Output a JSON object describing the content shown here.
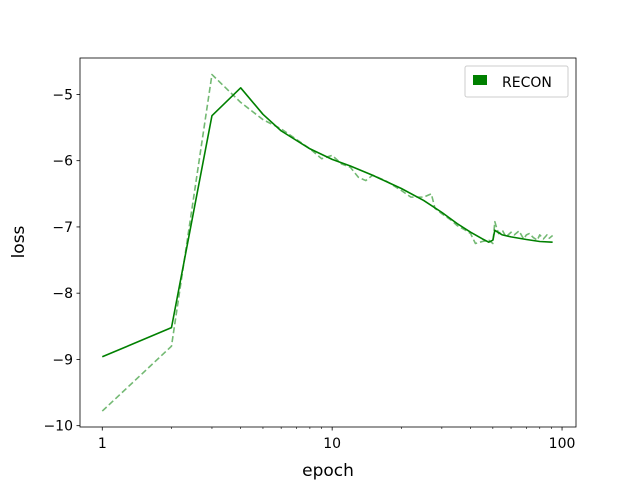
{
  "chart_data": {
    "type": "line",
    "title": "",
    "xlabel": "epoch",
    "ylabel": "loss",
    "xscale": "log",
    "xlim": [
      0.8,
      115
    ],
    "ylim": [
      -10.02,
      -4.45
    ],
    "grid": false,
    "legend_placement": "top-right",
    "x_ticks": [
      {
        "value": 1,
        "label": "1"
      },
      {
        "value": 10,
        "label": "10"
      },
      {
        "value": 100,
        "label": "100"
      }
    ],
    "y_ticks": [
      {
        "value": -5,
        "label": "−5"
      },
      {
        "value": -6,
        "label": "−6"
      },
      {
        "value": -7,
        "label": "−7"
      },
      {
        "value": -8,
        "label": "−8"
      },
      {
        "value": -9,
        "label": "−9"
      },
      {
        "value": -10,
        "label": "−10"
      }
    ],
    "series": [
      {
        "name": "RECON",
        "color": "#008000",
        "style": "solid",
        "opacity": 1,
        "in_legend": true,
        "x": [
          1,
          2,
          3,
          4,
          5,
          6,
          8,
          10,
          12,
          15,
          20,
          25,
          30,
          35,
          40,
          45,
          48,
          50,
          51,
          52,
          55,
          60,
          70,
          80,
          91
        ],
        "y": [
          -8.96,
          -8.52,
          -5.32,
          -4.9,
          -5.3,
          -5.55,
          -5.82,
          -5.98,
          -6.08,
          -6.22,
          -6.42,
          -6.6,
          -6.78,
          -6.95,
          -7.08,
          -7.18,
          -7.23,
          -7.2,
          -7.05,
          -7.07,
          -7.12,
          -7.15,
          -7.19,
          -7.22,
          -7.23
        ]
      },
      {
        "name": "",
        "color": "#008000",
        "style": "dashed",
        "opacity": 0.55,
        "in_legend": false,
        "x": [
          1,
          2,
          3,
          4,
          5,
          6,
          7,
          8,
          9,
          10,
          11,
          12,
          13,
          14,
          15,
          17,
          18,
          20,
          22,
          25,
          27,
          28,
          30,
          33,
          35,
          38,
          40,
          42,
          45,
          48,
          50,
          51,
          52,
          53,
          55,
          57,
          60,
          62,
          65,
          68,
          70,
          72,
          75,
          78,
          80,
          83,
          86,
          88,
          91
        ],
        "y": [
          -9.78,
          -8.8,
          -4.7,
          -5.12,
          -5.38,
          -5.52,
          -5.68,
          -5.82,
          -5.97,
          -5.92,
          -6.05,
          -6.1,
          -6.25,
          -6.3,
          -6.22,
          -6.3,
          -6.35,
          -6.45,
          -6.55,
          -6.55,
          -6.5,
          -6.72,
          -6.8,
          -6.9,
          -6.98,
          -7.05,
          -7.1,
          -7.25,
          -7.22,
          -7.2,
          -7.25,
          -6.92,
          -7.02,
          -7.1,
          -7.05,
          -7.15,
          -7.08,
          -7.12,
          -7.06,
          -7.18,
          -7.12,
          -7.1,
          -7.16,
          -7.2,
          -7.12,
          -7.18,
          -7.12,
          -7.17,
          -7.13
        ]
      }
    ]
  }
}
